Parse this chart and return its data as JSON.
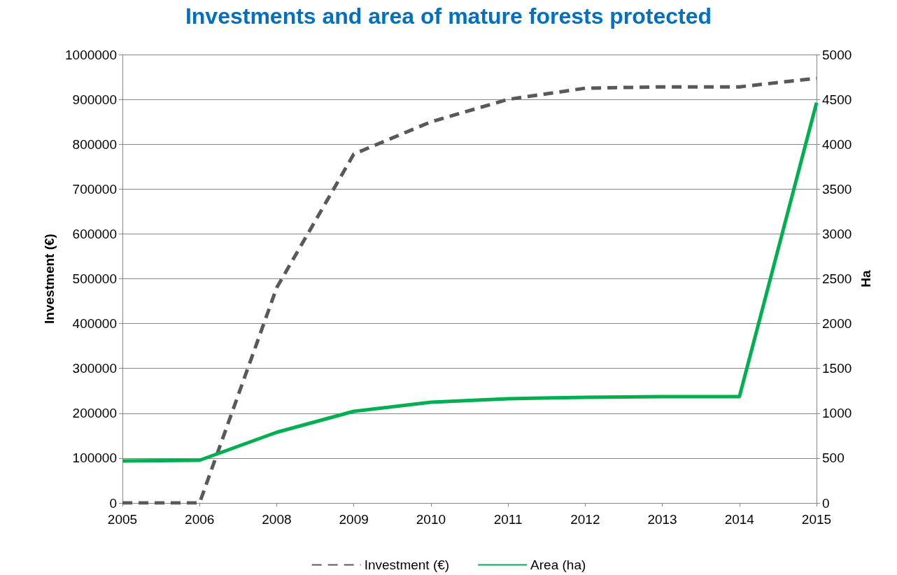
{
  "chart_data": {
    "type": "line",
    "title": "Investments and area of mature forests protected",
    "ylabel": "Investment (€)",
    "y2label": "Ha",
    "categories": [
      "2005",
      "2006",
      "2008",
      "2009",
      "2010",
      "2011",
      "2012",
      "2013",
      "2014",
      "2015"
    ],
    "series": [
      {
        "name": "Investment (€)",
        "color": "#595959",
        "line_style": "dashed",
        "values": [
          0,
          0,
          480000,
          778000,
          850000,
          900000,
          925000,
          928000,
          928000,
          947000
        ]
      },
      {
        "name": "Area (ha)",
        "color": "#00b050",
        "line_style": "solid",
        "axis": "y2",
        "values": [
          468,
          476,
          788,
          1022,
          1123,
          1162,
          1178,
          1186,
          1186,
          4462
        ]
      }
    ],
    "ylim": [
      0,
      1000000
    ],
    "yticks": [
      0,
      100000,
      200000,
      300000,
      400000,
      500000,
      600000,
      700000,
      800000,
      900000,
      1000000
    ],
    "y2lim": [
      0,
      5000
    ],
    "y2ticks": [
      0,
      500,
      1000,
      1500,
      2000,
      2500,
      3000,
      3500,
      4000,
      4500,
      5000
    ],
    "grid": "y",
    "legend": "bottom",
    "marker": "none"
  }
}
